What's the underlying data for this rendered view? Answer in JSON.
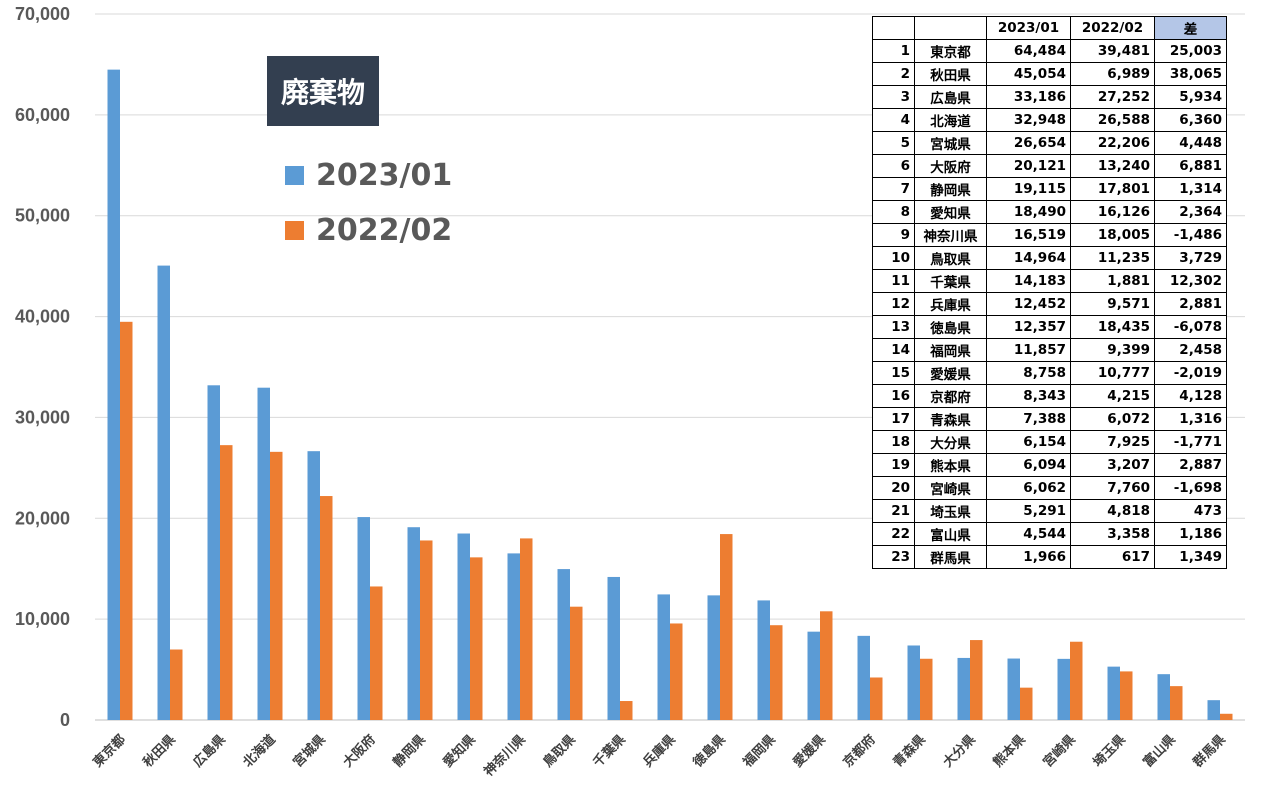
{
  "chart_title": "廃棄物",
  "colors": {
    "series1": "#5b9bd5",
    "series2": "#ed7d31",
    "title_bg": "#333f50",
    "diff_header_bg": "#b4c6e7"
  },
  "chart_data": {
    "type": "bar",
    "title": "廃棄物",
    "xlabel": "",
    "ylabel": "",
    "ylim": [
      0,
      70000
    ],
    "yticks": [
      "0",
      "10,000",
      "20,000",
      "30,000",
      "40,000",
      "50,000",
      "60,000",
      "70,000"
    ],
    "grid": true,
    "legend_position": "upper-left",
    "categories": [
      "東京都",
      "秋田県",
      "広島県",
      "北海道",
      "宮城県",
      "大阪府",
      "静岡県",
      "愛知県",
      "神奈川県",
      "鳥取県",
      "千葉県",
      "兵庫県",
      "徳島県",
      "福岡県",
      "愛媛県",
      "京都府",
      "青森県",
      "大分県",
      "熊本県",
      "宮崎県",
      "埼玉県",
      "富山県",
      "群馬県"
    ],
    "series": [
      {
        "name": "2023/01",
        "values": [
          64484,
          45054,
          33186,
          32948,
          26654,
          20121,
          19115,
          18490,
          16519,
          14964,
          14183,
          12452,
          12357,
          11857,
          8758,
          8343,
          7388,
          6154,
          6094,
          6062,
          5291,
          4544,
          1966
        ]
      },
      {
        "name": "2022/02",
        "values": [
          39481,
          6989,
          27252,
          26588,
          22206,
          13240,
          17801,
          16126,
          18005,
          11235,
          1881,
          9571,
          18435,
          9399,
          10777,
          4215,
          6072,
          7925,
          3207,
          7760,
          4818,
          3358,
          617
        ]
      }
    ]
  },
  "table": {
    "headers": [
      "",
      "",
      "2023/01",
      "2022/02",
      "差"
    ],
    "rows": [
      [
        "1",
        "東京都",
        "64,484",
        "39,481",
        "25,003"
      ],
      [
        "2",
        "秋田県",
        "45,054",
        "6,989",
        "38,065"
      ],
      [
        "3",
        "広島県",
        "33,186",
        "27,252",
        "5,934"
      ],
      [
        "4",
        "北海道",
        "32,948",
        "26,588",
        "6,360"
      ],
      [
        "5",
        "宮城県",
        "26,654",
        "22,206",
        "4,448"
      ],
      [
        "6",
        "大阪府",
        "20,121",
        "13,240",
        "6,881"
      ],
      [
        "7",
        "静岡県",
        "19,115",
        "17,801",
        "1,314"
      ],
      [
        "8",
        "愛知県",
        "18,490",
        "16,126",
        "2,364"
      ],
      [
        "9",
        "神奈川県",
        "16,519",
        "18,005",
        "-1,486"
      ],
      [
        "10",
        "鳥取県",
        "14,964",
        "11,235",
        "3,729"
      ],
      [
        "11",
        "千葉県",
        "14,183",
        "1,881",
        "12,302"
      ],
      [
        "12",
        "兵庫県",
        "12,452",
        "9,571",
        "2,881"
      ],
      [
        "13",
        "徳島県",
        "12,357",
        "18,435",
        "-6,078"
      ],
      [
        "14",
        "福岡県",
        "11,857",
        "9,399",
        "2,458"
      ],
      [
        "15",
        "愛媛県",
        "8,758",
        "10,777",
        "-2,019"
      ],
      [
        "16",
        "京都府",
        "8,343",
        "4,215",
        "4,128"
      ],
      [
        "17",
        "青森県",
        "7,388",
        "6,072",
        "1,316"
      ],
      [
        "18",
        "大分県",
        "6,154",
        "7,925",
        "-1,771"
      ],
      [
        "19",
        "熊本県",
        "6,094",
        "3,207",
        "2,887"
      ],
      [
        "20",
        "宮崎県",
        "6,062",
        "7,760",
        "-1,698"
      ],
      [
        "21",
        "埼玉県",
        "5,291",
        "4,818",
        "473"
      ],
      [
        "22",
        "富山県",
        "4,544",
        "3,358",
        "1,186"
      ],
      [
        "23",
        "群馬県",
        "1,966",
        "617",
        "1,349"
      ]
    ]
  }
}
